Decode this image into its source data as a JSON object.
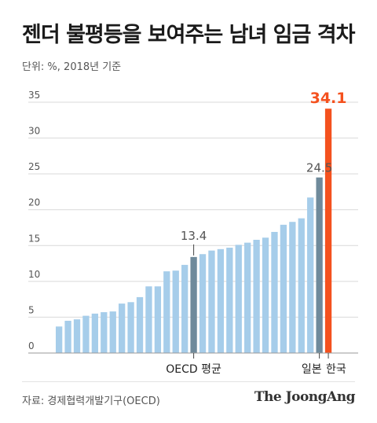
{
  "header": {
    "title": "젠더 불평등을 보여주는 남녀 임금 격차",
    "subtitle": "단위: %, 2018년 기준"
  },
  "footer": {
    "source": "자료: 경제협력개발기구(OECD)",
    "brand": "The JoongAng"
  },
  "colors": {
    "bar_default": "#a6cdea",
    "bar_highlight": "#6f8a9b",
    "bar_korea": "#f4511e",
    "grid": "#d9d9d9",
    "axis_text": "#555555",
    "label_highlight": "#555555",
    "label_korea": "#f4511e"
  },
  "chart_data": {
    "type": "bar",
    "ylim": [
      0,
      35
    ],
    "yticks": [
      0,
      5,
      10,
      15,
      20,
      25,
      30,
      35
    ],
    "grid": true,
    "values": [
      3.7,
      4.5,
      4.7,
      5.2,
      5.5,
      5.7,
      5.8,
      6.9,
      7.1,
      7.8,
      9.3,
      9.3,
      11.4,
      11.5,
      12.3,
      13.4,
      13.8,
      14.3,
      14.5,
      14.7,
      15.1,
      15.4,
      15.8,
      16.1,
      16.9,
      17.9,
      18.3,
      18.8,
      21.7,
      24.5,
      34.1
    ],
    "highlights": [
      {
        "index": 15,
        "label": "OECD 평균",
        "value_label": "13.4",
        "color": "#6f8a9b"
      },
      {
        "index": 29,
        "label": "일본",
        "value_label": "24.5",
        "color": "#6f8a9b"
      },
      {
        "index": 30,
        "label": "한국",
        "value_label": "34.1",
        "color": "#f4511e"
      }
    ]
  }
}
